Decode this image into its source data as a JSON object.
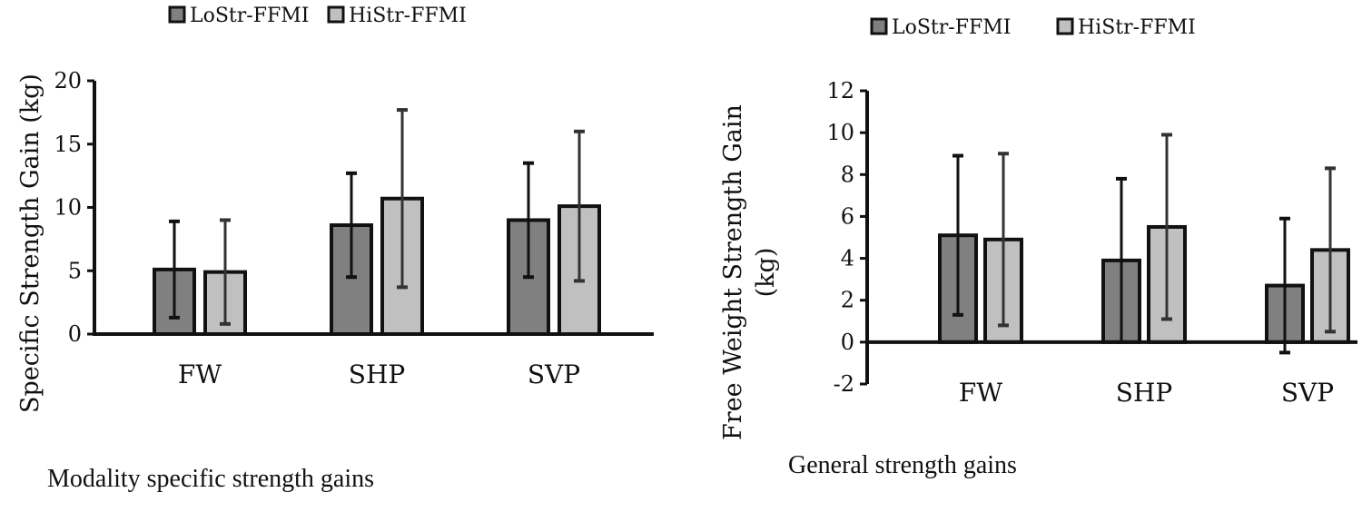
{
  "chart_data": [
    {
      "type": "bar",
      "title": "",
      "caption": "Modality specific strength gains",
      "xlabel": "",
      "ylabel": "Specific Strength Gain (kg)",
      "ylim": [
        0,
        20
      ],
      "yticks": [
        0,
        5,
        10,
        15,
        20
      ],
      "grid": false,
      "legend_position": "top",
      "categories": [
        "FW",
        "SHP",
        "SVP"
      ],
      "series": [
        {
          "name": "LoStr-FFMI",
          "color": "#808080",
          "values": [
            5.1,
            8.6,
            9.0
          ],
          "error": [
            3.8,
            4.1,
            4.5
          ]
        },
        {
          "name": "HiStr-FFMI",
          "color": "#c0c0c0",
          "values": [
            4.9,
            10.7,
            10.1
          ],
          "error": [
            4.1,
            7.0,
            5.9
          ]
        }
      ]
    },
    {
      "type": "bar",
      "title": "",
      "caption": "General strength gains",
      "xlabel": "",
      "ylabel": "Free Weight Strength Gain (kg)",
      "ylabel_lines": [
        "Free Weight Strength Gain",
        "(kg)"
      ],
      "ylim": [
        -2,
        12
      ],
      "yticks": [
        -2,
        0,
        2,
        4,
        6,
        8,
        10,
        12
      ],
      "grid": false,
      "legend_position": "top",
      "categories": [
        "FW",
        "SHP",
        "SVP"
      ],
      "series": [
        {
          "name": "LoStr-FFMI",
          "color": "#808080",
          "values": [
            5.1,
            3.9,
            2.7
          ],
          "error": [
            3.8,
            3.9,
            3.2
          ]
        },
        {
          "name": "HiStr-FFMI",
          "color": "#c0c0c0",
          "values": [
            4.9,
            5.5,
            4.4
          ],
          "error": [
            4.1,
            4.4,
            3.9
          ]
        }
      ]
    }
  ]
}
